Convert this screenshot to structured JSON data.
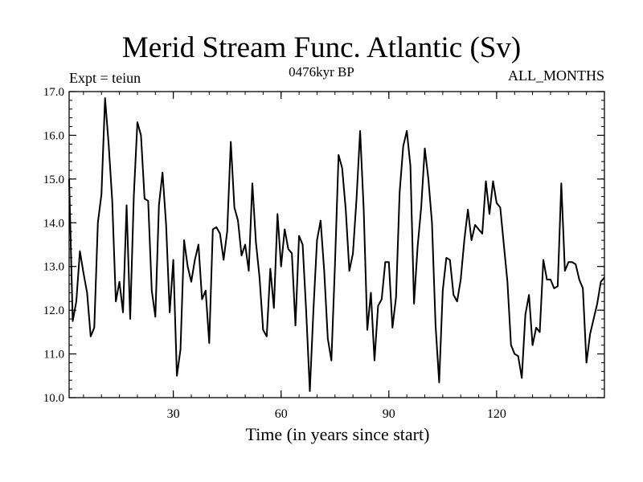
{
  "chart_data": {
    "type": "line",
    "title": "Merid Stream Func. Atlantic (Sv)",
    "subtitle": "0476kyr BP",
    "left_label": "Expt = teiun",
    "right_label": "ALL_MONTHS",
    "xlabel": "Time (in years since start)",
    "ylabel": "",
    "xlim": [
      1,
      150
    ],
    "ylim": [
      10.0,
      17.0
    ],
    "x_ticks": [
      30,
      60,
      90,
      120
    ],
    "x_tick_labels": [
      "30",
      "60",
      "90",
      "120"
    ],
    "y_ticks": [
      10,
      11,
      12,
      13,
      14,
      15,
      16,
      17
    ],
    "y_tick_labels": [
      "10.0",
      "11.0",
      "12.0",
      "13.0",
      "14.0",
      "15.0",
      "16.0",
      "17.0"
    ],
    "series": [
      {
        "name": "Merid Stream Func. Atlantic",
        "color": "#000000",
        "x": [
          1,
          2,
          3,
          4,
          5,
          6,
          7,
          8,
          9,
          10,
          11,
          12,
          13,
          14,
          15,
          16,
          17,
          18,
          19,
          20,
          21,
          22,
          23,
          24,
          25,
          26,
          27,
          28,
          29,
          30,
          31,
          32,
          33,
          34,
          35,
          36,
          37,
          38,
          39,
          40,
          41,
          42,
          43,
          44,
          45,
          46,
          47,
          48,
          49,
          50,
          51,
          52,
          53,
          54,
          55,
          56,
          57,
          58,
          59,
          60,
          61,
          62,
          63,
          64,
          65,
          66,
          67,
          68,
          69,
          70,
          71,
          72,
          73,
          74,
          75,
          76,
          77,
          78,
          79,
          80,
          81,
          82,
          83,
          84,
          85,
          86,
          87,
          88,
          89,
          90,
          91,
          92,
          93,
          94,
          95,
          96,
          97,
          98,
          99,
          100,
          101,
          102,
          103,
          104,
          105,
          106,
          107,
          108,
          109,
          110,
          111,
          112,
          113,
          114,
          115,
          116,
          117,
          118,
          119,
          120,
          121,
          122,
          123,
          124,
          125,
          126,
          127,
          128,
          129,
          130,
          131,
          132,
          133,
          134,
          135,
          136,
          137,
          138,
          139,
          140,
          141,
          142,
          143,
          144,
          145,
          146,
          147,
          148,
          149,
          150
        ],
        "values": [
          15.0,
          11.75,
          12.2,
          13.35,
          12.85,
          12.4,
          11.4,
          11.6,
          14.0,
          14.65,
          16.85,
          15.8,
          14.5,
          12.2,
          12.65,
          11.95,
          14.4,
          11.8,
          14.6,
          16.3,
          16.0,
          14.55,
          14.5,
          12.45,
          11.85,
          14.4,
          15.15,
          13.95,
          11.95,
          13.15,
          10.5,
          11.1,
          13.6,
          13.0,
          12.65,
          13.15,
          13.5,
          12.25,
          12.45,
          11.25,
          13.85,
          13.9,
          13.75,
          13.15,
          13.8,
          15.85,
          14.35,
          14.05,
          13.25,
          13.5,
          12.9,
          14.9,
          13.55,
          12.75,
          11.55,
          11.4,
          12.95,
          12.05,
          14.2,
          13.0,
          13.85,
          13.4,
          13.3,
          11.65,
          13.7,
          13.5,
          11.95,
          10.15,
          12.0,
          13.6,
          14.05,
          12.9,
          11.35,
          10.85,
          13.05,
          15.55,
          15.25,
          14.3,
          12.9,
          13.3,
          14.55,
          16.1,
          14.3,
          11.55,
          12.4,
          10.85,
          12.1,
          12.25,
          13.1,
          13.1,
          11.6,
          12.3,
          14.7,
          15.75,
          16.1,
          15.3,
          12.15,
          13.45,
          14.35,
          15.7,
          15.0,
          14.0,
          11.65,
          10.35,
          12.45,
          13.2,
          13.15,
          12.35,
          12.2,
          12.7,
          13.6,
          14.3,
          13.6,
          13.95,
          13.85,
          13.75,
          14.95,
          14.2,
          14.95,
          14.45,
          14.35,
          13.5,
          12.65,
          11.2,
          11.0,
          10.95,
          10.45,
          11.9,
          12.35,
          11.2,
          11.6,
          11.5,
          13.15,
          12.7,
          12.7,
          12.5,
          12.55,
          14.9,
          12.9,
          13.1,
          13.1,
          13.05,
          12.7,
          12.5,
          10.8,
          11.45,
          11.8,
          12.15,
          12.65,
          12.75
        ]
      }
    ],
    "grid": false
  }
}
